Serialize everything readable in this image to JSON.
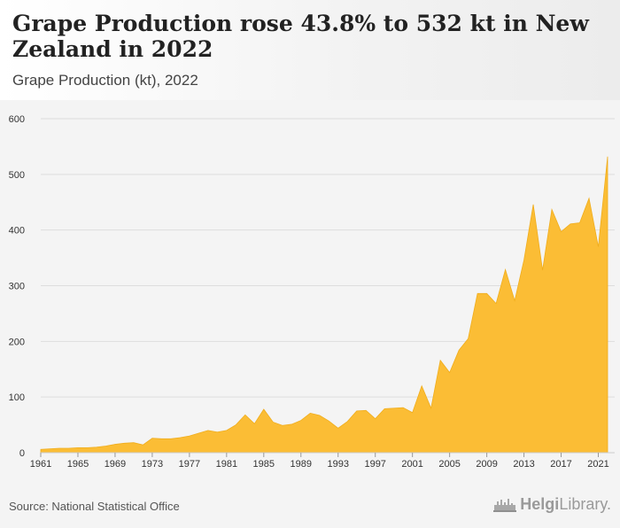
{
  "header": {
    "title": "Grape Production rose 43.8% to 532 kt in New Zealand in 2022",
    "subtitle": "Grape Production (kt), 2022"
  },
  "footer": {
    "source": "Source: National Statistical Office",
    "brand_strong": "Helgi",
    "brand_rest": "Library."
  },
  "colors": {
    "area_fill": "#fbbd35",
    "area_stroke": "#f0ad1c",
    "grid": "#dddddd",
    "axis_text": "#333333"
  },
  "chart_data": {
    "type": "area",
    "x": [
      1961,
      1962,
      1963,
      1964,
      1965,
      1966,
      1967,
      1968,
      1969,
      1970,
      1971,
      1972,
      1973,
      1974,
      1975,
      1976,
      1977,
      1978,
      1979,
      1980,
      1981,
      1982,
      1983,
      1984,
      1985,
      1986,
      1987,
      1988,
      1989,
      1990,
      1991,
      1992,
      1993,
      1994,
      1995,
      1996,
      1997,
      1998,
      1999,
      2000,
      2001,
      2002,
      2003,
      2004,
      2005,
      2006,
      2007,
      2008,
      2009,
      2010,
      2011,
      2012,
      2013,
      2014,
      2015,
      2016,
      2017,
      2018,
      2019,
      2020,
      2021,
      2022
    ],
    "values": [
      6,
      7,
      8,
      8,
      9,
      9,
      10,
      12,
      15,
      17,
      18,
      14,
      26,
      25,
      25,
      27,
      30,
      35,
      40,
      37,
      40,
      50,
      68,
      52,
      78,
      55,
      49,
      51,
      58,
      71,
      67,
      57,
      44,
      56,
      75,
      76,
      61,
      79,
      80,
      81,
      72,
      120,
      80,
      166,
      144,
      184,
      205,
      286,
      286,
      268,
      329,
      273,
      346,
      446,
      328,
      437,
      397,
      411,
      413,
      457,
      370,
      532
    ],
    "series": [
      {
        "name": ""
      }
    ],
    "title": "Grape Production (kt), 2022",
    "xlabel": "",
    "ylabel": "",
    "ylim": [
      0,
      600
    ],
    "yticks": [
      0,
      100,
      200,
      300,
      400,
      500,
      600
    ],
    "xticks": [
      1961,
      1965,
      1969,
      1973,
      1977,
      1981,
      1985,
      1989,
      1993,
      1997,
      2001,
      2005,
      2009,
      2013,
      2017,
      2021
    ],
    "grid": true,
    "legend": "none"
  }
}
